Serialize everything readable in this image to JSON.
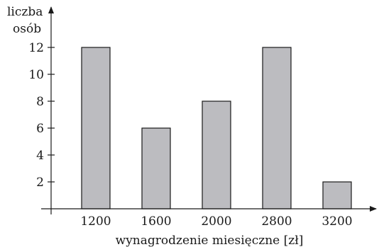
{
  "chart_data": {
    "type": "bar",
    "categories": [
      "1200",
      "1600",
      "2000",
      "2800",
      "3200"
    ],
    "values": [
      12,
      6,
      8,
      12,
      2
    ],
    "title": "",
    "xlabel": "wynagrodzenie miesięczne [zł]",
    "ylabel_line1": "liczba",
    "ylabel_line2": "osób",
    "y_ticks": [
      2,
      4,
      6,
      8,
      10,
      12
    ],
    "ylim": [
      0,
      14
    ],
    "grid": false,
    "bar_color": "#bcbcc0",
    "bar_stroke": "#1a1a1a"
  }
}
